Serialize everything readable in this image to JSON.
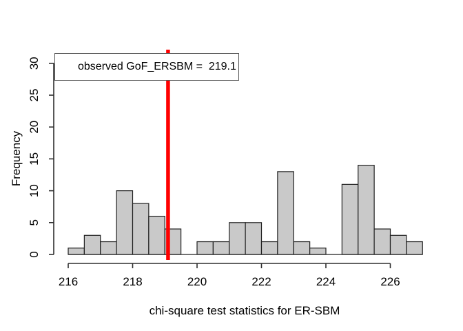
{
  "chart_data": {
    "type": "bar",
    "subtype": "histogram",
    "title": "",
    "xlabel": "chi-square test statistics for ER-SBM",
    "ylabel": "Frequency",
    "bin_start": 216,
    "bin_width": 0.5,
    "categories": [
      216.0,
      216.5,
      217.0,
      217.5,
      218.0,
      218.5,
      219.0,
      219.5,
      220.0,
      220.5,
      221.0,
      221.5,
      222.0,
      222.5,
      223.0,
      223.5,
      224.0,
      224.5,
      225.0,
      225.5,
      226.0,
      226.5
    ],
    "values": [
      1,
      3,
      2,
      10,
      8,
      6,
      4,
      0,
      2,
      2,
      5,
      5,
      2,
      13,
      2,
      1,
      0,
      11,
      14,
      4,
      3,
      2
    ],
    "x_ticks": [
      216,
      218,
      220,
      222,
      224,
      226
    ],
    "y_ticks": [
      0,
      5,
      10,
      15,
      20,
      25,
      30
    ],
    "xlim": [
      216,
      227
    ],
    "ylim": [
      0,
      30
    ],
    "grid": false,
    "legend_position": "top-left",
    "legend_text": "observed GoF_ERSBM =  219.1",
    "observed_value": 219.1,
    "colors": {
      "bar_fill": "#c9c9c9",
      "bar_border": "#1f1f1f",
      "axis": "#2e2e2e",
      "observed_line": "#ff0000",
      "legend_border": "#555555",
      "text": "#000000",
      "background": "#ffffff"
    }
  }
}
